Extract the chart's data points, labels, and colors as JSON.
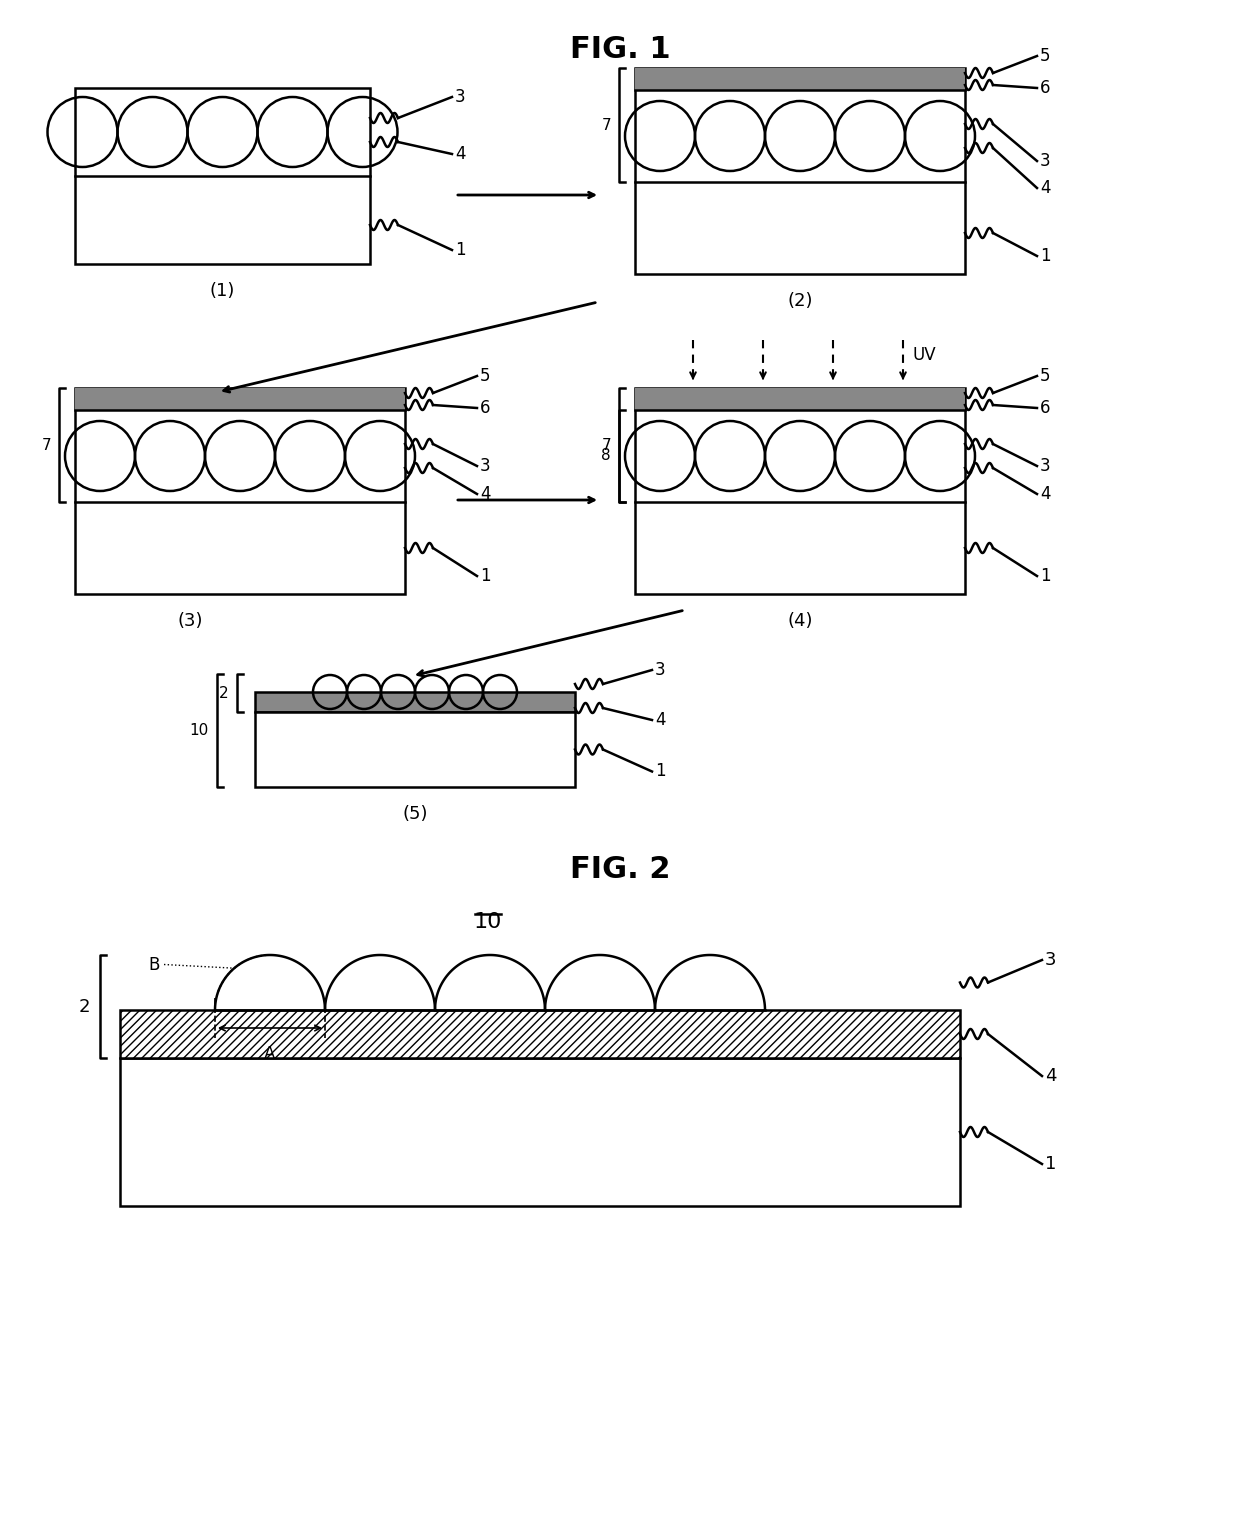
{
  "fig_title1": "FIG. 1",
  "fig_title2": "FIG. 2",
  "fig2_label": "10",
  "background_color": "#ffffff",
  "line_color": "#000000",
  "diagram_labels": {
    "d1": "(1)",
    "d2": "(2)",
    "d3": "(3)",
    "d4": "(4)",
    "d5": "(5)"
  },
  "uv_label": "UV",
  "A_label": "A",
  "B_label": "B"
}
